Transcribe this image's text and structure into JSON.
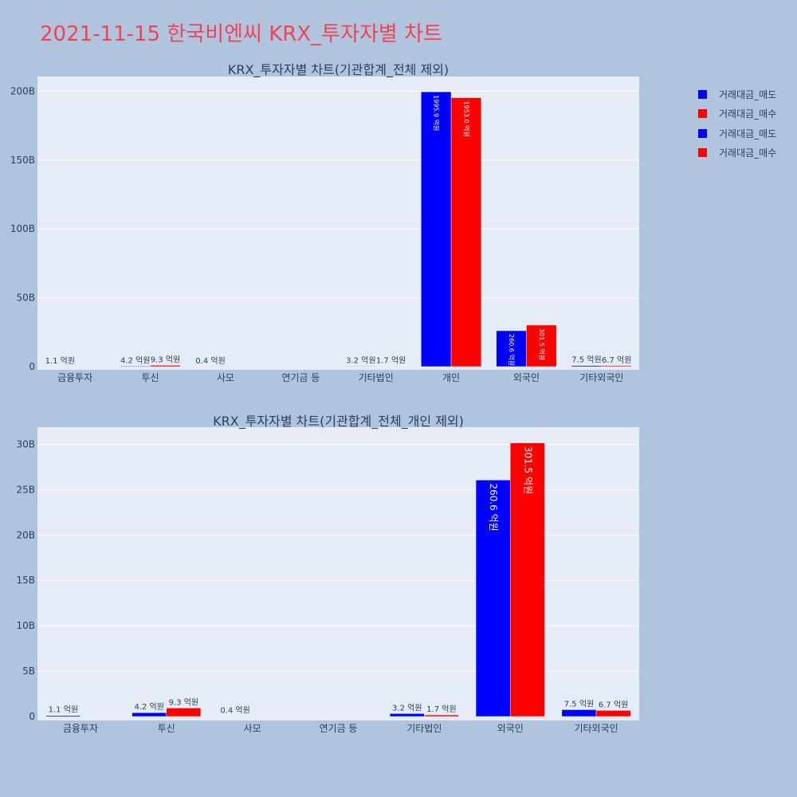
{
  "title": "2021-11-15 한국비엔씨 KRX_투자자별 차트",
  "colors": {
    "sell": "#0000ff",
    "buy": "#ff0000",
    "plot_bg": "#e5ecf6",
    "page_bg": "#b0c4de"
  },
  "legend": [
    {
      "name": "거래대금_매도",
      "color": "#0000ff"
    },
    {
      "name": "거래대금_매수",
      "color": "#ff0000"
    },
    {
      "name": "거래대금_매도",
      "color": "#0000ff"
    },
    {
      "name": "거래대금_매수",
      "color": "#ff0000"
    }
  ],
  "chart_data": [
    {
      "type": "bar",
      "title": "KRX_투자자별 차트(기관합계_전체 제외)",
      "categories": [
        "금융투자",
        "투신",
        "사모",
        "연기금 등",
        "기타법인",
        "개인",
        "외국인",
        "기타외국인"
      ],
      "series": [
        {
          "name": "거래대금_매도",
          "values": [
            0.11,
            0.42,
            0.04,
            0,
            0.32,
            199.59,
            26.06,
            0.75
          ],
          "labels": [
            "1.1 억원",
            "4.2 억원",
            "0.4 억원",
            "",
            "3.2 억원",
            "1995.9 억원",
            "260.6 억원",
            "7.5 억원"
          ]
        },
        {
          "name": "거래대금_매수",
          "values": [
            0,
            0.93,
            0,
            0,
            0.17,
            195.3,
            30.15,
            0.67
          ],
          "labels": [
            "",
            "9.3 억원",
            "",
            "",
            "1.7 억원",
            "1953.0 억원",
            "301.5 억원",
            "6.7 억원"
          ]
        }
      ],
      "yticks": [
        0,
        50,
        100,
        150,
        200
      ],
      "ytick_labels": [
        "0",
        "50B",
        "100B",
        "150B",
        "200B"
      ],
      "ylim": [
        0,
        210.1
      ],
      "grid": true
    },
    {
      "type": "bar",
      "title": "KRX_투자자별 차트(기관합계_전체_개인 제외)",
      "categories": [
        "금융투자",
        "투신",
        "사모",
        "연기금 등",
        "기타법인",
        "외국인",
        "기타외국인"
      ],
      "series": [
        {
          "name": "거래대금_매도",
          "values": [
            0.11,
            0.42,
            0.04,
            0,
            0.32,
            26.06,
            0.75
          ],
          "labels": [
            "1.1 억원",
            "4.2 억원",
            "0.4 억원",
            "",
            "3.2 억원",
            "260.6 억원",
            "7.5 억원"
          ]
        },
        {
          "name": "거래대금_매수",
          "values": [
            0,
            0.93,
            0,
            0,
            0.17,
            30.15,
            0.67
          ],
          "labels": [
            "",
            "9.3 억원",
            "",
            "",
            "1.7 억원",
            "301.5 억원",
            "6.7 억원"
          ]
        }
      ],
      "yticks": [
        0,
        5,
        10,
        15,
        20,
        25,
        30
      ],
      "ytick_labels": [
        "0",
        "5B",
        "10B",
        "15B",
        "20B",
        "25B",
        "30B"
      ],
      "ylim": [
        0,
        31.8
      ],
      "grid": true
    }
  ]
}
